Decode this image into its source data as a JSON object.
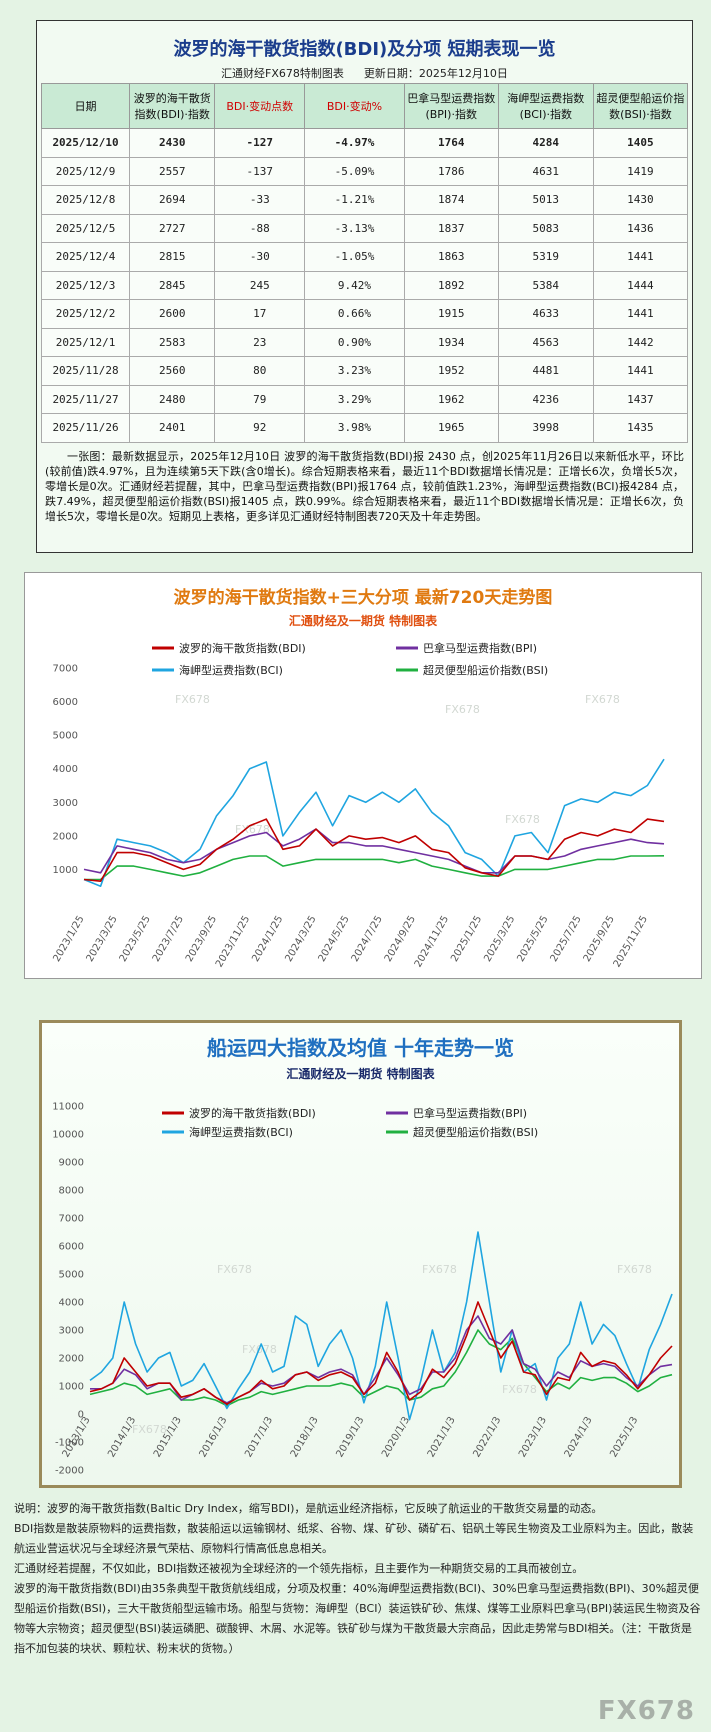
{
  "table": {
    "title": "波罗的海干散货指数(BDI)及分项 短期表现一览",
    "source": "汇通财经FX678特制图表",
    "updated": "更新日期：2025年12月10日",
    "header": [
      "日期",
      "波罗的海干散货指数(BDI)·指数",
      "BDI·变动点数",
      "BDI·变动%",
      "巴拿马型运费指数(BPI)·指数",
      "海岬型运费指数(BCI)·指数",
      "超灵便型船运价指数(BSI)·指数"
    ],
    "rows": [
      [
        "2025/12/10",
        "2430",
        "-127",
        "-4.97%",
        "1764",
        "4284",
        "1405"
      ],
      [
        "2025/12/9",
        "2557",
        "-137",
        "-5.09%",
        "1786",
        "4631",
        "1419"
      ],
      [
        "2025/12/8",
        "2694",
        "-33",
        "-1.21%",
        "1874",
        "5013",
        "1430"
      ],
      [
        "2025/12/5",
        "2727",
        "-88",
        "-3.13%",
        "1837",
        "5083",
        "1436"
      ],
      [
        "2025/12/4",
        "2815",
        "-30",
        "-1.05%",
        "1863",
        "5319",
        "1441"
      ],
      [
        "2025/12/3",
        "2845",
        "245",
        "9.42%",
        "1892",
        "5384",
        "1444"
      ],
      [
        "2025/12/2",
        "2600",
        "17",
        "0.66%",
        "1915",
        "4633",
        "1441"
      ],
      [
        "2025/12/1",
        "2583",
        "23",
        "0.90%",
        "1934",
        "4563",
        "1442"
      ],
      [
        "2025/11/28",
        "2560",
        "80",
        "3.23%",
        "1952",
        "4481",
        "1441"
      ],
      [
        "2025/11/27",
        "2480",
        "79",
        "3.29%",
        "1962",
        "4236",
        "1437"
      ],
      [
        "2025/11/26",
        "2401",
        "92",
        "3.98%",
        "1965",
        "3998",
        "1435"
      ]
    ]
  },
  "summary": "一张图：最新数据显示，2025年12月10日 波罗的海干散货指数(BDI)报 2430 点，创2025年11月26日以来新低水平，环比(较前值)跌4.97%，且为连续第5天下跌(含0增长)。综合短期表格来看，最近11个BDI数据增长情况是：正增长6次，负增长5次，零增长是0次。汇通财经若提醒，其中，巴拿马型运费指数(BPI)报1764 点，较前值跌1.23%，海岬型运费指数(BCI)报4284 点，跌7.49%，超灵便型船运价指数(BSI)报1405 点，跌0.99%。综合短期表格来看，最近11个BDI数据增长情况是：正增长6次，负增长5次，零增长是0次。短期见上表格，更多详见汇通财经特制图表720天及十年走势图。",
  "watermark": "FX678",
  "chart_data": [
    {
      "type": "line",
      "title": "波罗的海干散货指数+三大分项  最新720天走势图",
      "subtitle": "汇通财经及一期货  特制图表",
      "x": [
        "2023/1/25",
        null,
        "2023/3/25",
        null,
        "2023/5/25",
        null,
        "2023/7/25",
        null,
        "2023/9/25",
        null,
        "2023/11/25",
        null,
        "2024/1/25",
        null,
        "2024/3/25",
        null,
        "2024/5/25",
        null,
        "2024/7/25",
        null,
        "2024/9/25",
        null,
        "2024/11/25",
        null,
        "2025/1/25",
        null,
        "2025/3/25",
        null,
        "2025/5/25",
        null,
        "2025/7/25",
        null,
        "2025/9/25",
        null,
        "2025/11/25",
        null
      ],
      "series": [
        {
          "name": "波罗的海干散货指数(BDI)",
          "color": "#c00000",
          "values": [
            700,
            650,
            1500,
            1500,
            1400,
            1200,
            1000,
            1150,
            1600,
            1900,
            2300,
            2500,
            1600,
            1700,
            2200,
            1700,
            2000,
            1900,
            1950,
            1800,
            2000,
            1600,
            1500,
            1050,
            900,
            800,
            1400,
            1400,
            1300,
            1900,
            2100,
            2000,
            2200,
            2100,
            2500,
            2430
          ]
        },
        {
          "name": "巴拿马型运费指数(BPI)",
          "color": "#7030a0",
          "values": [
            1000,
            900,
            1700,
            1600,
            1500,
            1300,
            1200,
            1300,
            1600,
            1800,
            2000,
            2100,
            1700,
            1900,
            2200,
            1800,
            1800,
            1700,
            1700,
            1600,
            1500,
            1400,
            1300,
            1100,
            900,
            900,
            1400,
            1400,
            1300,
            1400,
            1600,
            1700,
            1800,
            1900,
            1800,
            1764
          ]
        },
        {
          "name": "海岬型运费指数(BCI)",
          "color": "#1fa5e0",
          "values": [
            700,
            500,
            1900,
            1800,
            1700,
            1500,
            1200,
            1600,
            2600,
            3200,
            4000,
            4200,
            2000,
            2700,
            3300,
            2300,
            3200,
            3000,
            3300,
            3000,
            3400,
            2700,
            2300,
            1500,
            1300,
            800,
            2000,
            2100,
            1500,
            2900,
            3100,
            3000,
            3300,
            3200,
            3500,
            4284
          ]
        },
        {
          "name": "超灵便型船运价指数(BSI)",
          "color": "#20b040",
          "values": [
            700,
            700,
            1100,
            1100,
            1000,
            900,
            800,
            900,
            1100,
            1300,
            1400,
            1400,
            1100,
            1200,
            1300,
            1300,
            1300,
            1300,
            1300,
            1200,
            1300,
            1100,
            1000,
            900,
            800,
            800,
            1000,
            1000,
            1000,
            1100,
            1200,
            1300,
            1300,
            1400,
            1400,
            1405
          ]
        }
      ],
      "ylim": [
        0,
        7000
      ],
      "yticks": [
        1000,
        2000,
        3000,
        4000,
        5000,
        6000,
        7000
      ],
      "grid": false
    },
    {
      "type": "line",
      "title": "船运四大指数及均值 十年走势一览",
      "subtitle": "汇通财经及一期货 特制图表",
      "x": [
        "2013/1/3",
        null,
        null,
        null,
        "2014/1/3",
        null,
        null,
        null,
        "2015/1/3",
        null,
        null,
        null,
        "2016/1/3",
        null,
        null,
        null,
        "2017/1/3",
        null,
        null,
        null,
        "2018/1/3",
        null,
        null,
        null,
        "2019/1/3",
        null,
        null,
        null,
        "2020/1/3",
        null,
        null,
        null,
        "2021/1/3",
        null,
        null,
        null,
        "2022/1/3",
        null,
        null,
        null,
        "2023/1/3",
        null,
        null,
        null,
        "2024/1/3",
        null,
        null,
        null,
        "2025/1/3",
        null,
        null,
        null
      ],
      "series": [
        {
          "name": "波罗的海干散货指数(BDI)",
          "color": "#c00000",
          "values": [
            800,
            900,
            1100,
            2000,
            1500,
            1000,
            1100,
            1100,
            600,
            700,
            900,
            600,
            350,
            600,
            800,
            1200,
            900,
            1000,
            1400,
            1500,
            1200,
            1400,
            1500,
            1300,
            700,
            1100,
            2200,
            1500,
            500,
            800,
            1600,
            1300,
            1800,
            2800,
            4000,
            3000,
            2000,
            2600,
            1500,
            1400,
            700,
            1300,
            1200,
            2200,
            1700,
            1900,
            1800,
            1400,
            900,
            1400,
            2000,
            2430
          ]
        },
        {
          "name": "巴拿马型运费指数(BPI)",
          "color": "#7030a0",
          "values": [
            900,
            900,
            1100,
            1600,
            1400,
            900,
            1100,
            1100,
            500,
            700,
            900,
            600,
            400,
            600,
            800,
            1100,
            1000,
            1100,
            1400,
            1500,
            1300,
            1500,
            1600,
            1400,
            700,
            1300,
            2000,
            1400,
            700,
            900,
            1500,
            1500,
            2000,
            3000,
            3500,
            2700,
            2500,
            3000,
            1800,
            1600,
            1000,
            1500,
            1300,
            1900,
            1700,
            1800,
            1700,
            1300,
            1000,
            1400,
            1700,
            1764
          ]
        },
        {
          "name": "海岬型运费指数(BCI)",
          "color": "#1fa5e0",
          "values": [
            1200,
            1500,
            2000,
            4000,
            2500,
            1500,
            2000,
            2200,
            1000,
            1200,
            1800,
            1000,
            200,
            900,
            1500,
            2500,
            1500,
            1700,
            3500,
            3200,
            1700,
            2500,
            3000,
            2000,
            400,
            1700,
            4000,
            2000,
            -200,
            1200,
            3000,
            1500,
            2200,
            4000,
            6500,
            4000,
            1500,
            3000,
            1500,
            1800,
            500,
            2000,
            2500,
            4000,
            2500,
            3200,
            2800,
            1800,
            900,
            2300,
            3200,
            4284
          ]
        },
        {
          "name": "超灵便型船运价指数(BSI)",
          "color": "#20b040",
          "values": [
            700,
            800,
            900,
            1100,
            1000,
            700,
            800,
            900,
            500,
            500,
            600,
            500,
            300,
            500,
            600,
            800,
            700,
            800,
            900,
            1000,
            1000,
            1000,
            1100,
            1000,
            600,
            800,
            1000,
            900,
            500,
            600,
            900,
            1000,
            1500,
            2200,
            3000,
            2500,
            2300,
            2700,
            1800,
            1300,
            800,
            1100,
            900,
            1300,
            1200,
            1300,
            1300,
            1100,
            800,
            1000,
            1300,
            1405
          ]
        }
      ],
      "ylim": [
        -2000,
        11000
      ],
      "yticks": [
        -2000,
        -1000,
        0,
        1000,
        2000,
        3000,
        4000,
        5000,
        6000,
        7000,
        8000,
        9000,
        10000,
        11000
      ],
      "grid": false
    }
  ],
  "notes": [
    "说明：波罗的海干散货指数(Baltic Dry Index，缩写BDI)，是航运业经济指标，它反映了航运业的干散货交易量的动态。",
    "BDI指数是散装原物料的运费指数，散装船运以运输钢材、纸浆、谷物、煤、矿砂、磷矿石、铝矾土等民生物资及工业原料为主。因此，散装航运业营运状况与全球经济景气荣枯、原物料行情高低息息相关。",
    "汇通财经若提醒，不仅如此，BDI指数还被视为全球经济的一个领先指标，且主要作为一种期货交易的工具而被创立。",
    "波罗的海干散货指数(BDI)由35条典型干散货航线组成，分项及权重：40%海岬型运费指数(BCI)、30%巴拿马型运费指数(BPI)、30%超灵便型船运价指数(BSI)，三大干散货船型运输市场。船型与货物：海岬型（BCI）装运铁矿砂、焦煤、煤等工业原料巴拿马(BPI)装运民生物资及谷物等大宗物资；超灵便型(BSI)装运磷肥、碳酸钾、木屑、水泥等。铁矿砂与煤为干散货最大宗商品，因此走势常与BDI相关。（注：干散货是指不加包装的块状、颗粒状、粉末状的货物。）"
  ]
}
